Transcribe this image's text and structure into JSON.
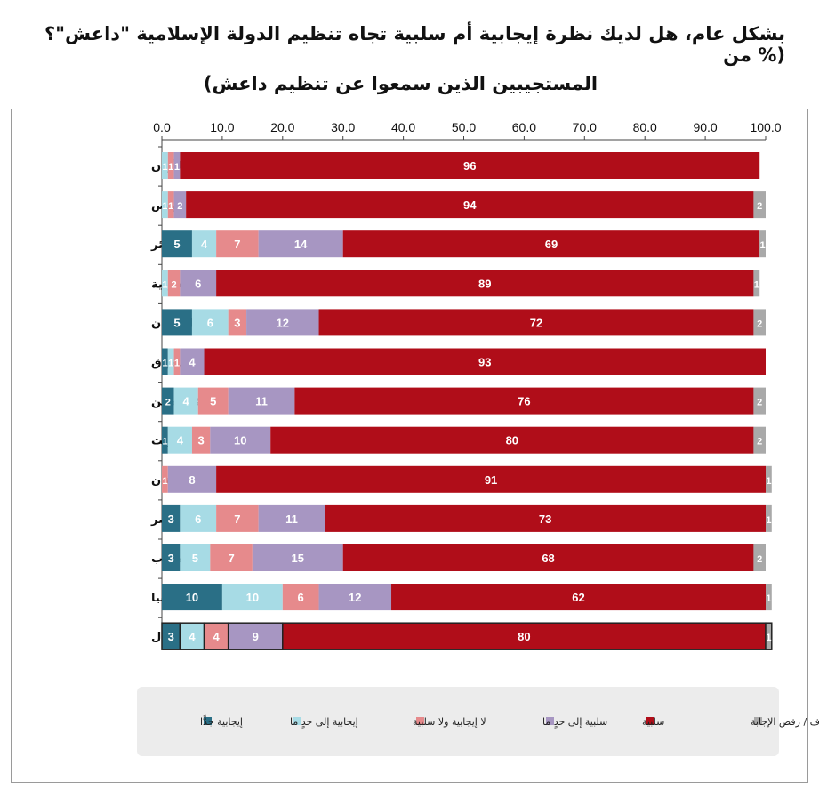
{
  "title_line1": "بشكل عام، هل لديك نظرة إيجابية أم سلبية تجاه تنظيم الدولة الإسلامية \"داعش\"؟ (% من",
  "title_line2": "المستجيبين الذين سمعوا عن تنظيم داعش)",
  "chart_data": {
    "type": "bar",
    "orientation": "horizontal",
    "stacked": true,
    "xlim": [
      0,
      100
    ],
    "x_ticks": [
      "0.0",
      "10.0",
      "20.0",
      "30.0",
      "40.0",
      "50.0",
      "60.0",
      "70.0",
      "80.0",
      "90.0",
      "100.0"
    ],
    "x_axis_position": "top",
    "grid": false,
    "legend_position": "bottom",
    "categories": [
      "الأردن",
      "تونس",
      "الجزائر",
      "السعودية",
      "السودان",
      "العراق",
      "فلسطين",
      "الكويت",
      "لبنان",
      "مصر",
      "المغرب",
      "موريتانيا",
      "المعدل"
    ],
    "series": [
      {
        "name": "إيجابية جدًّا",
        "color": "#2a6f86",
        "values": [
          0,
          0,
          5,
          0,
          5,
          1,
          2,
          1,
          0,
          3,
          3,
          10,
          3
        ]
      },
      {
        "name": "إيجابية إلى حدٍ ما",
        "color": "#a7dbe5",
        "values": [
          1,
          1,
          4,
          1,
          6,
          1,
          4,
          4,
          0,
          6,
          5,
          10,
          4
        ]
      },
      {
        "name": "لا إيجابية ولا سلبية",
        "color": "#e68a8c",
        "values": [
          1,
          1,
          7,
          2,
          3,
          1,
          5,
          3,
          1,
          7,
          7,
          6,
          4
        ]
      },
      {
        "name": "سلبية إلى حدٍ ما",
        "color": "#a796c2",
        "values": [
          1,
          2,
          14,
          6,
          12,
          4,
          11,
          10,
          8,
          11,
          15,
          12,
          9
        ]
      },
      {
        "name": "سلبية",
        "color": "#b00d19",
        "values": [
          96,
          94,
          69,
          89,
          72,
          93,
          76,
          80,
          91,
          73,
          68,
          62,
          80
        ]
      },
      {
        "name": "لا أعرف / رفض الإجابة",
        "color": "#a9a9a9",
        "values": [
          0,
          2,
          1,
          1,
          2,
          0,
          2,
          2,
          1,
          1,
          2,
          1,
          1
        ]
      }
    ],
    "highlight_last_row": true
  }
}
